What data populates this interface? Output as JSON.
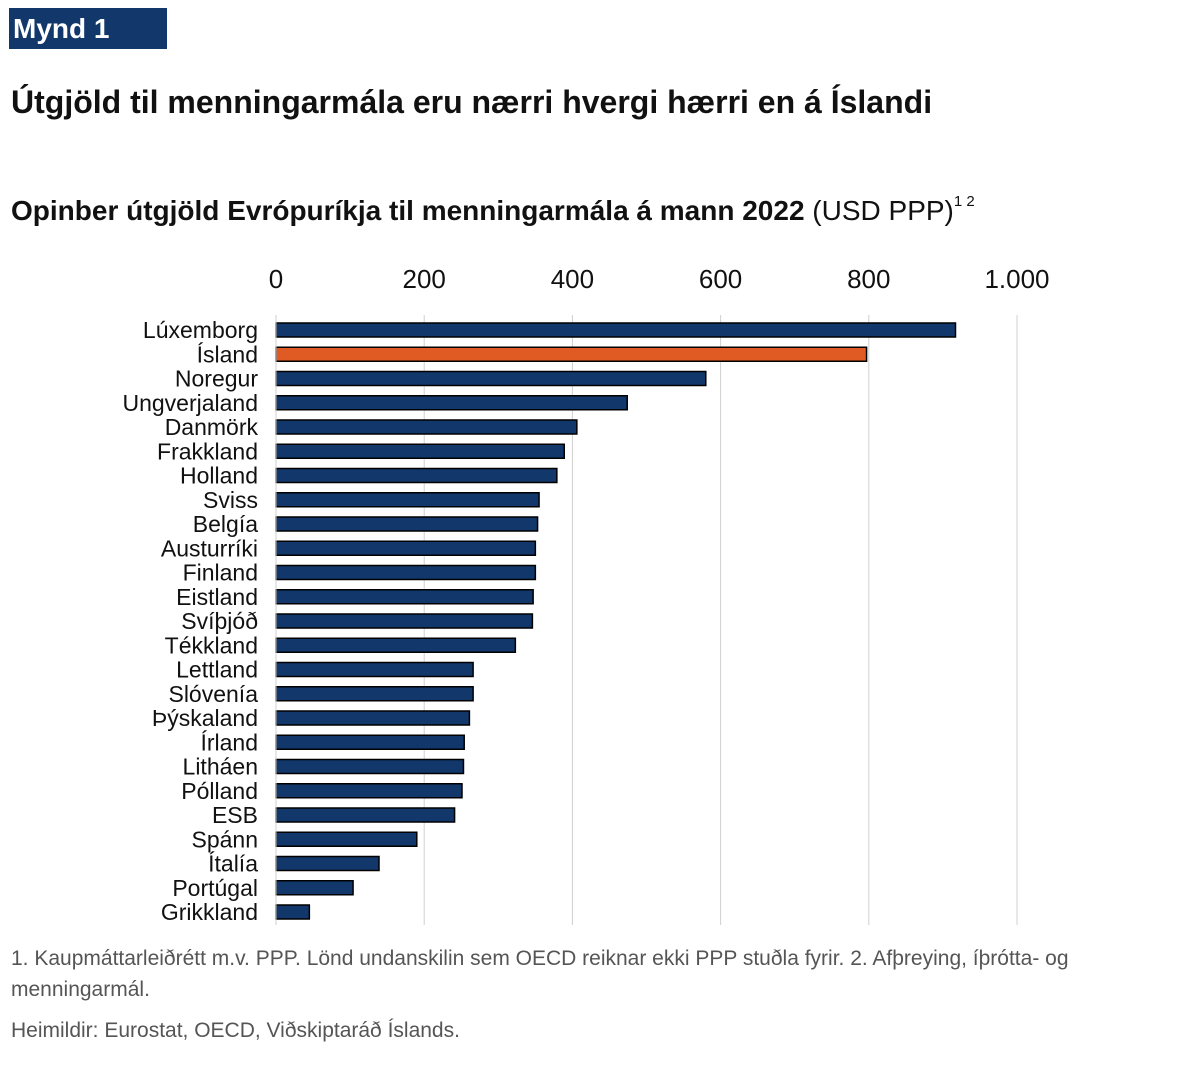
{
  "badge": "Mynd 1",
  "headline": "Útgjöld til menningarmála eru nærri hvergi hærri en á Íslandi",
  "subtitle": {
    "bold": "Opinber útgjöld Evrópuríkja til menningarmála á mann 2022",
    "unit": " (USD PPP)",
    "footnote_refs": "1 2"
  },
  "colors": {
    "default_bar": "#12376a",
    "highlight_bar": "#e05a24",
    "grid": "#d0d0d0"
  },
  "chart_data": {
    "type": "bar",
    "orientation": "horizontal",
    "xlim": [
      0,
      1000
    ],
    "x_ticks": [
      0,
      200,
      400,
      600,
      800,
      1000
    ],
    "x_tick_labels": [
      "0",
      "200",
      "400",
      "600",
      "800",
      "1.000"
    ],
    "axis_position": "top",
    "grid": true,
    "highlight": "Ísland",
    "categories": [
      "Lúxemborg",
      "Ísland",
      "Noregur",
      "Ungverjaland",
      "Danmörk",
      "Frakkland",
      "Holland",
      "Sviss",
      "Belgía",
      "Austurríki",
      "Finland",
      "Eistland",
      "Svíþjóð",
      "Tékkland",
      "Lettland",
      "Slóvenía",
      "Þýskaland",
      "Írland",
      "Litháen",
      "Pólland",
      "ESB",
      "Spánn",
      "Ítalía",
      "Portúgal",
      "Grikkland"
    ],
    "values": [
      917,
      797,
      580,
      474,
      406,
      389,
      379,
      355,
      353,
      350,
      350,
      347,
      346,
      323,
      266,
      266,
      261,
      254,
      253,
      251,
      241,
      190,
      139,
      104,
      45
    ]
  },
  "notes": "1. Kaupmáttarleiðrétt m.v. PPP. Lönd undanskilin sem OECD reiknar ekki PPP stuðla fyrir. 2. Afþreying, íþrótta- og menningarmál.",
  "source": "Heimildir: Eurostat, OECD, Viðskiptaráð Íslands."
}
